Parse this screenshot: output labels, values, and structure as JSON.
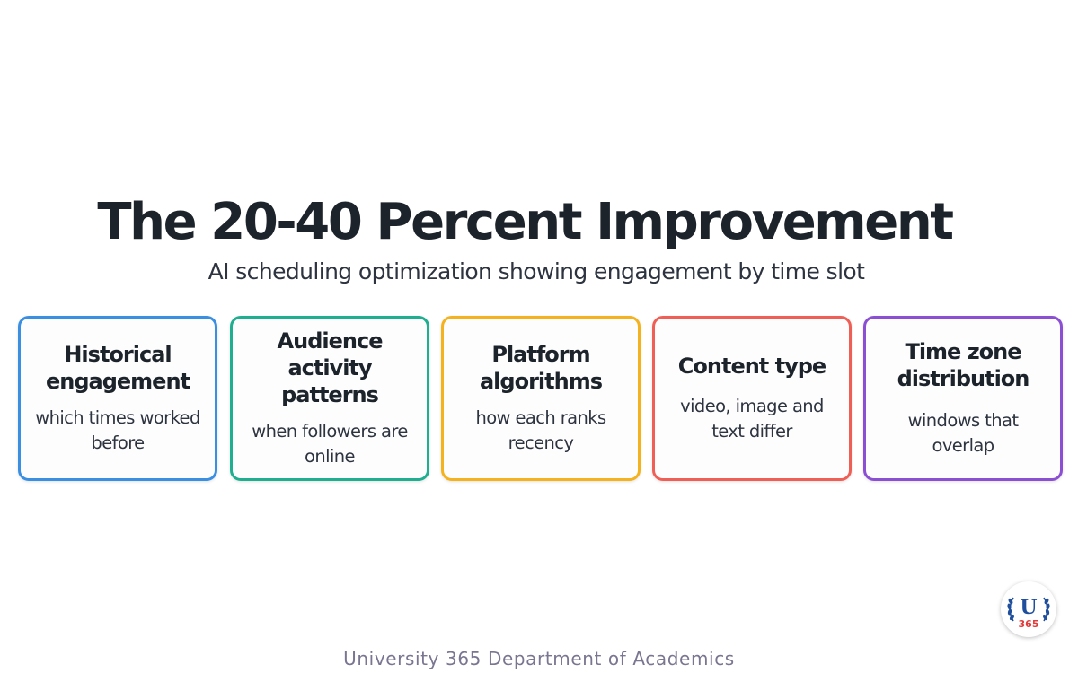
{
  "title": "The 20-40 Percent Improvement",
  "subtitle": "AI scheduling optimization showing engagement by time slot",
  "cards": [
    {
      "title_lines": [
        "Historical",
        "engagement"
      ],
      "desc_lines": [
        "which times worked",
        "before"
      ],
      "color": "#3b8fe3"
    },
    {
      "title_lines": [
        "Audience",
        "activity patterns"
      ],
      "desc_lines": [
        "when followers are",
        "online"
      ],
      "color": "#1fae8f"
    },
    {
      "title_lines": [
        "Platform",
        "algorithms"
      ],
      "desc_lines": [
        "how each ranks",
        "recency"
      ],
      "color": "#f4b21e"
    },
    {
      "title_lines": [
        "Content type"
      ],
      "desc_lines": [
        "video, image and",
        "text differ"
      ],
      "color": "#ef5f55"
    },
    {
      "title_lines": [
        "Time zone",
        "distribution"
      ],
      "desc_lines": [
        "windows that overlap"
      ],
      "color": "#8a4fd3"
    }
  ],
  "footer": "University 365 Department of Academics",
  "logo": {
    "letter": "U",
    "number": "365",
    "color_primary": "#1f4f9c",
    "color_accent": "#e23b3b"
  }
}
